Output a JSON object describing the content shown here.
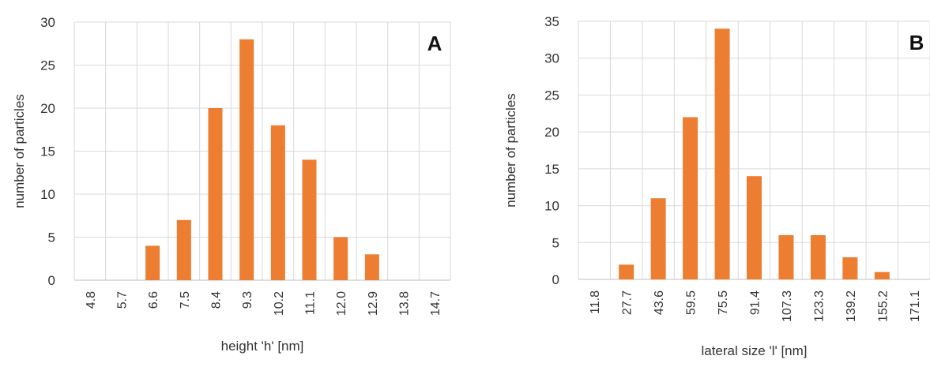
{
  "chart_data": [
    {
      "type": "bar",
      "panel_label": "A",
      "xlabel": "height 'h' [nm]",
      "ylabel": "number of particles",
      "categories": [
        "4.8",
        "5.7",
        "6.6",
        "7.5",
        "8.4",
        "9.3",
        "10.2",
        "11.1",
        "12.0",
        "12.9",
        "13.8",
        "14.7"
      ],
      "values": [
        0,
        0,
        4,
        7,
        20,
        28,
        18,
        14,
        5,
        3,
        0,
        0
      ],
      "ylim": [
        0,
        30
      ],
      "yticks": [
        "0",
        "5",
        "10",
        "15",
        "20",
        "25",
        "30"
      ],
      "grid": true,
      "bar_color": "#ED7D31"
    },
    {
      "type": "bar",
      "panel_label": "B",
      "xlabel": "lateral size 'l' [nm]",
      "ylabel": "number of particles",
      "categories": [
        "11.8",
        "27.7",
        "43.6",
        "59.5",
        "75.5",
        "91.4",
        "107.3",
        "123.3",
        "139.2",
        "155.2",
        "171.1"
      ],
      "values": [
        0,
        2,
        11,
        22,
        34,
        14,
        6,
        6,
        3,
        1,
        0
      ],
      "ylim": [
        0,
        35
      ],
      "yticks": [
        "0",
        "5",
        "10",
        "15",
        "20",
        "25",
        "30",
        "35"
      ],
      "grid": true,
      "bar_color": "#ED7D31"
    }
  ]
}
